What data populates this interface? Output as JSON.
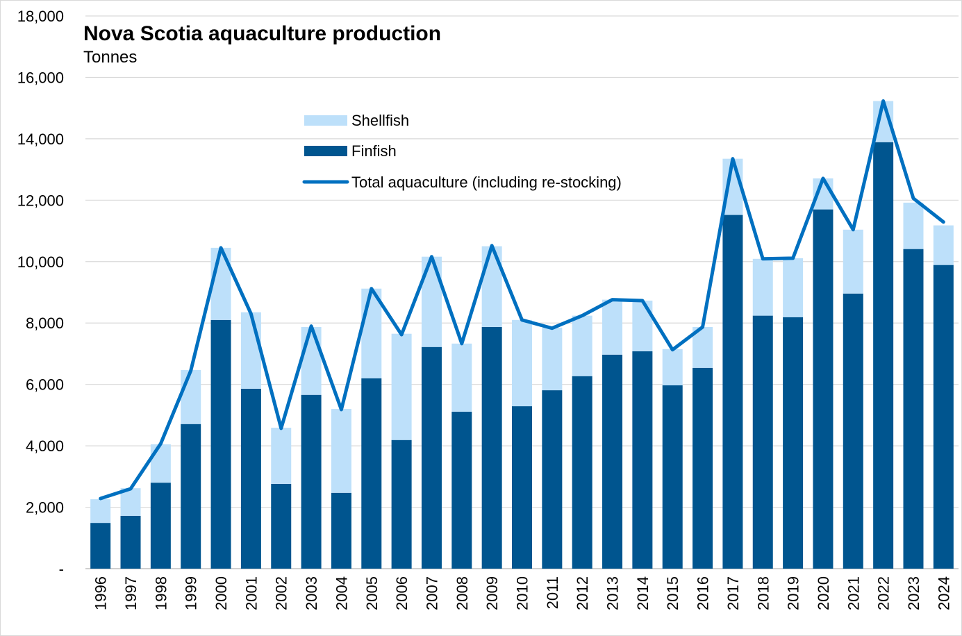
{
  "chart_data": {
    "type": "bar",
    "stacked": true,
    "title": "Nova Scotia aquaculture production",
    "subtitle": "Tonnes",
    "xlabel": "",
    "ylabel": "Tonnes",
    "ylim": [
      0,
      18000
    ],
    "yticks": [
      0,
      2000,
      4000,
      6000,
      8000,
      10000,
      12000,
      14000,
      16000,
      18000
    ],
    "ytick_labels": [
      "-",
      "2,000",
      "4,000",
      "6,000",
      "8,000",
      "10,000",
      "12,000",
      "14,000",
      "16,000",
      "18,000"
    ],
    "grid": true,
    "legend_position": "top-center",
    "categories": [
      "1996",
      "1997",
      "1998",
      "1999",
      "2000",
      "2001",
      "2002",
      "2003",
      "2004",
      "2005",
      "2006",
      "2007",
      "2008",
      "2009",
      "2010",
      "2011",
      "2012",
      "2013",
      "2014",
      "2015",
      "2016",
      "2017",
      "2018",
      "2019",
      "2020",
      "2021",
      "2022",
      "2023",
      "2024"
    ],
    "series": [
      {
        "name": "Finfish",
        "type": "bar",
        "color": "#00558F",
        "values": [
          1490,
          1720,
          2800,
          4710,
          8100,
          5860,
          2760,
          5660,
          2470,
          6200,
          4190,
          7220,
          5110,
          7870,
          5290,
          5810,
          6270,
          6970,
          7080,
          5970,
          6540,
          11520,
          8240,
          8190,
          11700,
          8960,
          13890,
          10410,
          9890
        ]
      },
      {
        "name": "Shellfish",
        "type": "bar",
        "color": "#BDE0FA",
        "values": [
          770,
          900,
          1250,
          1760,
          2350,
          2490,
          1830,
          2210,
          2730,
          2920,
          3460,
          2940,
          2220,
          2630,
          2810,
          2040,
          1970,
          1790,
          1650,
          1180,
          1330,
          1830,
          1850,
          1920,
          1010,
          2080,
          1340,
          1510,
          1290
        ]
      },
      {
        "name": "Total aquaculture (including re-stocking)",
        "type": "line",
        "color": "#0070C0",
        "values": [
          2285,
          2600,
          4070,
          6450,
          10450,
          8300,
          4570,
          7900,
          5180,
          9120,
          7620,
          10160,
          7330,
          10520,
          8100,
          7830,
          8240,
          8760,
          8730,
          7130,
          7870,
          13350,
          10090,
          10110,
          12710,
          11040,
          15230,
          12060,
          11290
        ]
      }
    ]
  }
}
